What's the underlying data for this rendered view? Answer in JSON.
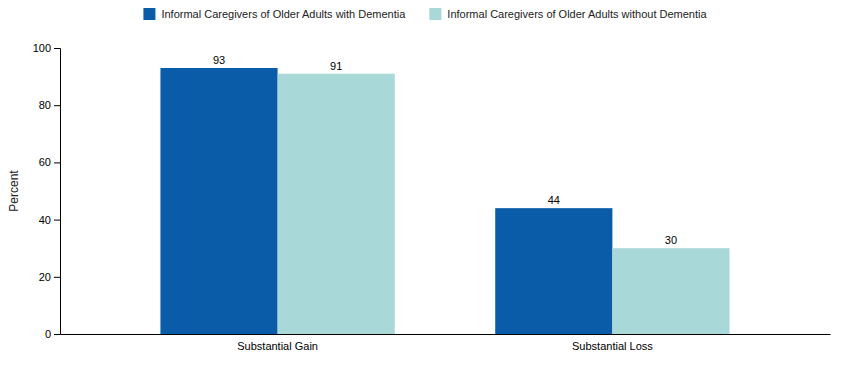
{
  "chart_data": {
    "type": "bar",
    "categories": [
      "Substantial Gain",
      "Substantial Loss"
    ],
    "series": [
      {
        "name": "Informal Caregivers of Older Adults with Dementia",
        "color": "#0a5ca8",
        "values": [
          93,
          44
        ]
      },
      {
        "name": "Informal Caregivers of Older Adults without Dementia",
        "color": "#a8d8d8",
        "values": [
          91,
          30
        ]
      }
    ],
    "ylabel": "Percent",
    "ylim": [
      0,
      100
    ],
    "yticks": [
      0,
      20,
      40,
      60,
      80,
      100
    ],
    "grid": false,
    "legend": "top",
    "data_labels": true
  }
}
